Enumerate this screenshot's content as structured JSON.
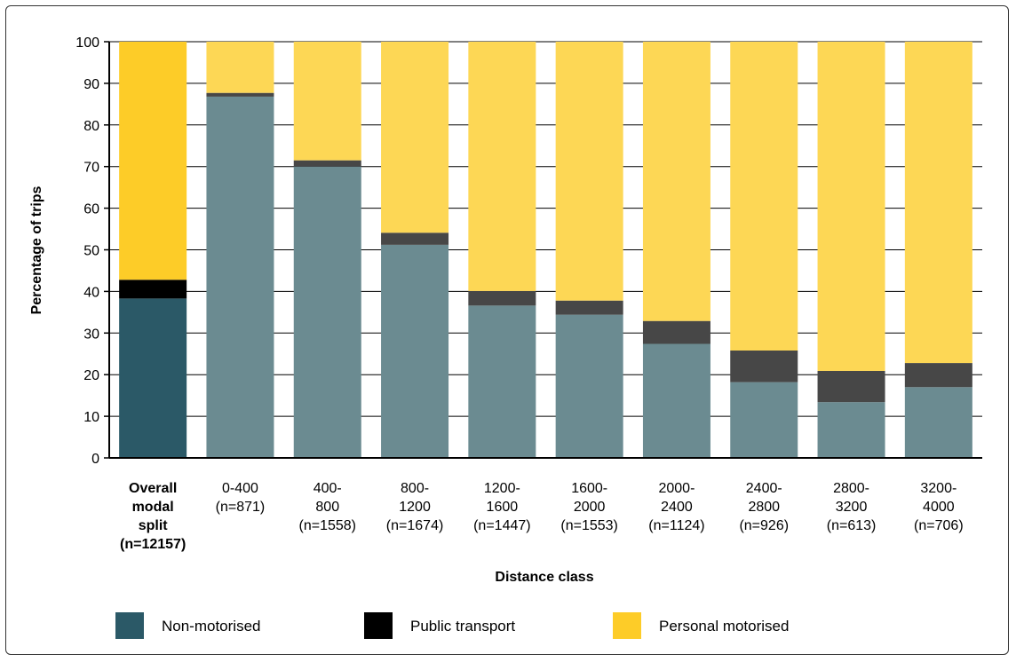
{
  "chart_data": {
    "type": "bar",
    "stacked": true,
    "ylabel": "Percentage of trips",
    "xlabel": "Distance class",
    "ylim": [
      0,
      100
    ],
    "yticks": [
      0,
      10,
      20,
      30,
      40,
      50,
      60,
      70,
      80,
      90,
      100
    ],
    "grid": true,
    "legend_placement": "bottom",
    "categories": [
      {
        "lines": [
          "Overall",
          "modal",
          "split",
          "(n=12157)"
        ],
        "emphasis": true
      },
      {
        "lines": [
          "0-400",
          "(n=871)"
        ],
        "emphasis": false
      },
      {
        "lines": [
          "400-",
          "800",
          "(n=1558)"
        ],
        "emphasis": false
      },
      {
        "lines": [
          "800-",
          "1200",
          "(n=1674)"
        ],
        "emphasis": false
      },
      {
        "lines": [
          "1200-",
          "1600",
          "(n=1447)"
        ],
        "emphasis": false
      },
      {
        "lines": [
          "1600-",
          "2000",
          "(n=1553)"
        ],
        "emphasis": false
      },
      {
        "lines": [
          "2000-",
          "2400",
          "(n=1124)"
        ],
        "emphasis": false
      },
      {
        "lines": [
          "2400-",
          "2800",
          "(n=926)"
        ],
        "emphasis": false
      },
      {
        "lines": [
          "2800-",
          "3200",
          "(n=613)"
        ],
        "emphasis": false
      },
      {
        "lines": [
          "3200-",
          "4000",
          "(n=706)"
        ],
        "emphasis": false
      }
    ],
    "series": [
      {
        "name": "Non-motorised",
        "values": [
          38.3,
          86.8,
          70.0,
          51.2,
          36.6,
          34.4,
          27.4,
          18.2,
          13.4,
          17.0
        ],
        "color_overall": "#2b5967",
        "color": "#6b8b91",
        "legend_color": "#2b5967"
      },
      {
        "name": "Public transport",
        "values": [
          4.5,
          0.9,
          1.5,
          2.9,
          3.5,
          3.4,
          5.5,
          7.6,
          7.5,
          5.8
        ],
        "color_overall": "#000000",
        "color": "#474747",
        "legend_color": "#000000"
      },
      {
        "name": "Personal motorised",
        "values": [
          57.2,
          12.3,
          28.5,
          45.9,
          59.9,
          62.2,
          67.1,
          74.2,
          79.1,
          77.2
        ],
        "color_overall": "#fdcc28",
        "color": "#fdd755",
        "legend_color": "#fdcc28"
      }
    ]
  }
}
